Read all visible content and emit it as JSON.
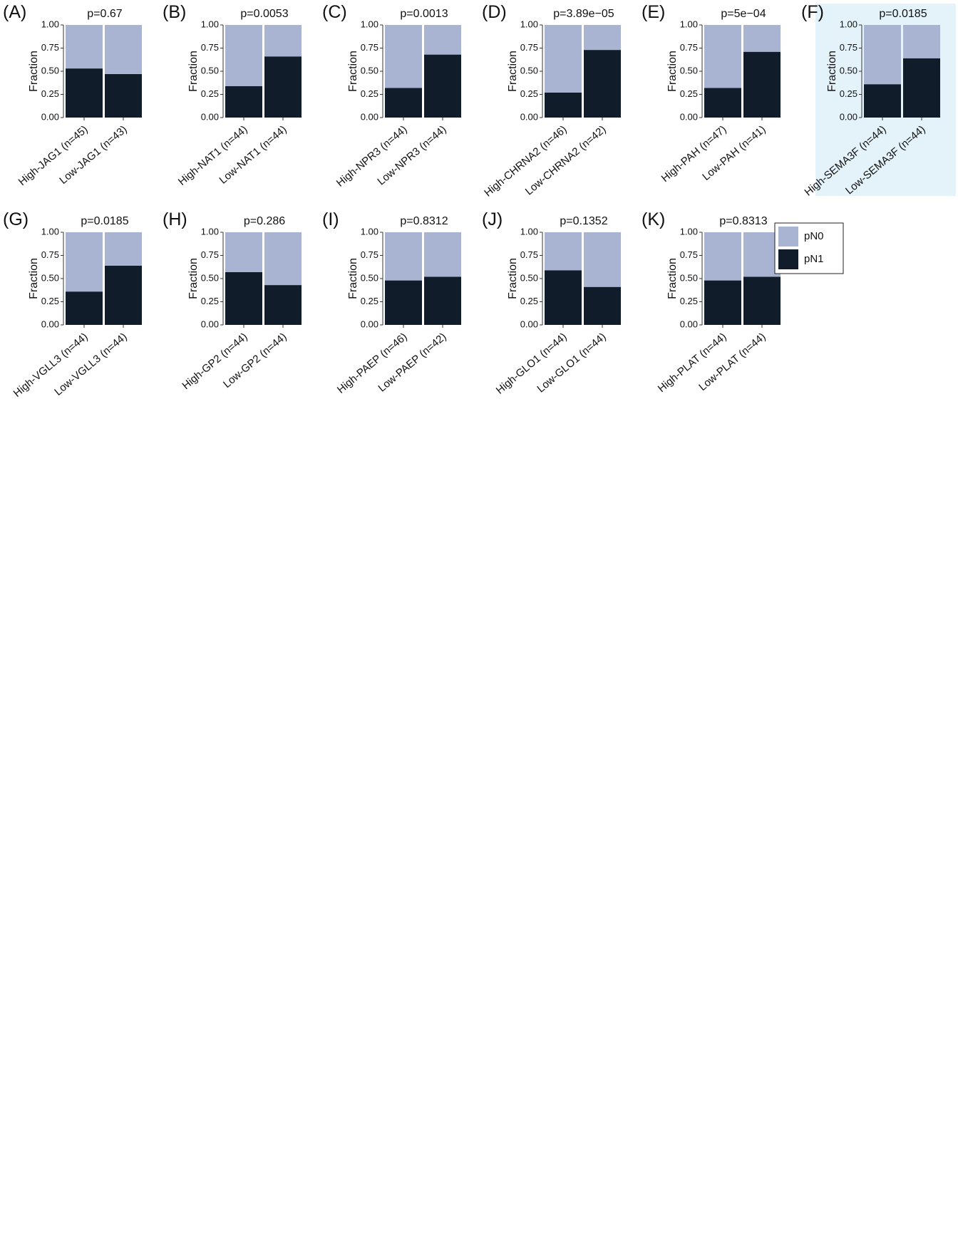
{
  "colors": {
    "pN0": "#a8b4d2",
    "pN1": "#111c2b",
    "highlight_bg": "#e4f2fa"
  },
  "legend": {
    "items": [
      "pN0",
      "pN1"
    ]
  },
  "chart_data": [
    {
      "type": "bar",
      "stacked": true,
      "panel": "(A)",
      "title": "p=0.67",
      "ylabel": "Fraction",
      "ylim": [
        0,
        1
      ],
      "yticks": [
        "0.00",
        "0.25",
        "0.50",
        "0.75",
        "1.00"
      ],
      "categories": [
        "High-JAG1 (n=45)",
        "Low-JAG1 (n=43)"
      ],
      "series": [
        {
          "name": "pN1",
          "values": [
            0.53,
            0.47
          ]
        },
        {
          "name": "pN0",
          "values": [
            0.47,
            0.53
          ]
        }
      ]
    },
    {
      "type": "bar",
      "stacked": true,
      "panel": "(B)",
      "title": "p=0.0053",
      "ylabel": "Fraction",
      "ylim": [
        0,
        1
      ],
      "yticks": [
        "0.00",
        "0.25",
        "0.50",
        "0.75",
        "1.00"
      ],
      "categories": [
        "High-NAT1 (n=44)",
        "Low-NAT1 (n=44)"
      ],
      "series": [
        {
          "name": "pN1",
          "values": [
            0.34,
            0.66
          ]
        },
        {
          "name": "pN0",
          "values": [
            0.66,
            0.34
          ]
        }
      ]
    },
    {
      "type": "bar",
      "stacked": true,
      "panel": "(C)",
      "title": "p=0.0013",
      "ylabel": "Fraction",
      "ylim": [
        0,
        1
      ],
      "yticks": [
        "0.00",
        "0.25",
        "0.50",
        "0.75",
        "1.00"
      ],
      "categories": [
        "High-NPR3 (n=44)",
        "Low-NPR3 (n=44)"
      ],
      "series": [
        {
          "name": "pN1",
          "values": [
            0.32,
            0.68
          ]
        },
        {
          "name": "pN0",
          "values": [
            0.68,
            0.32
          ]
        }
      ]
    },
    {
      "type": "bar",
      "stacked": true,
      "panel": "(D)",
      "title": "p=3.89e−05",
      "ylabel": "Fraction",
      "ylim": [
        0,
        1
      ],
      "yticks": [
        "0.00",
        "0.25",
        "0.50",
        "0.75",
        "1.00"
      ],
      "categories": [
        "High-CHRNA2 (n=46)",
        "Low-CHRNA2 (n=42)"
      ],
      "series": [
        {
          "name": "pN1",
          "values": [
            0.27,
            0.73
          ]
        },
        {
          "name": "pN0",
          "values": [
            0.73,
            0.27
          ]
        }
      ]
    },
    {
      "type": "bar",
      "stacked": true,
      "panel": "(E)",
      "title": "p=5e−04",
      "ylabel": "Fraction",
      "ylim": [
        0,
        1
      ],
      "yticks": [
        "0.00",
        "0.25",
        "0.50",
        "0.75",
        "1.00"
      ],
      "categories": [
        "High-PAH (n=47)",
        "Low-PAH (n=41)"
      ],
      "series": [
        {
          "name": "pN1",
          "values": [
            0.32,
            0.71
          ]
        },
        {
          "name": "pN0",
          "values": [
            0.68,
            0.29
          ]
        }
      ]
    },
    {
      "type": "bar",
      "stacked": true,
      "panel": "(F)",
      "title": "p=0.0185",
      "ylabel": "Fraction",
      "ylim": [
        0,
        1
      ],
      "yticks": [
        "0.00",
        "0.25",
        "0.50",
        "0.75",
        "1.00"
      ],
      "highlighted": true,
      "categories": [
        "High-SEMA3F (n=44)",
        "Low-SEMA3F (n=44)"
      ],
      "series": [
        {
          "name": "pN1",
          "values": [
            0.36,
            0.64
          ]
        },
        {
          "name": "pN0",
          "values": [
            0.64,
            0.36
          ]
        }
      ]
    },
    {
      "type": "bar",
      "stacked": true,
      "panel": "(G)",
      "title": "p=0.0185",
      "ylabel": "Fraction",
      "ylim": [
        0,
        1
      ],
      "yticks": [
        "0.00",
        "0.25",
        "0.50",
        "0.75",
        "1.00"
      ],
      "categories": [
        "High-VGLL3 (n=44)",
        "Low-VGLL3 (n=44)"
      ],
      "series": [
        {
          "name": "pN1",
          "values": [
            0.36,
            0.64
          ]
        },
        {
          "name": "pN0",
          "values": [
            0.64,
            0.36
          ]
        }
      ]
    },
    {
      "type": "bar",
      "stacked": true,
      "panel": "(H)",
      "title": "p=0.286",
      "ylabel": "Fraction",
      "ylim": [
        0,
        1
      ],
      "yticks": [
        "0.00",
        "0.25",
        "0.50",
        "0.75",
        "1.00"
      ],
      "categories": [
        "High-GP2 (n=44)",
        "Low-GP2 (n=44)"
      ],
      "series": [
        {
          "name": "pN1",
          "values": [
            0.57,
            0.43
          ]
        },
        {
          "name": "pN0",
          "values": [
            0.43,
            0.57
          ]
        }
      ]
    },
    {
      "type": "bar",
      "stacked": true,
      "panel": "(I)",
      "title": "p=0.8312",
      "ylabel": "Fraction",
      "ylim": [
        0,
        1
      ],
      "yticks": [
        "0.00",
        "0.25",
        "0.50",
        "0.75",
        "1.00"
      ],
      "categories": [
        "High-PAEP (n=46)",
        "Low-PAEP (n=42)"
      ],
      "series": [
        {
          "name": "pN1",
          "values": [
            0.48,
            0.52
          ]
        },
        {
          "name": "pN0",
          "values": [
            0.52,
            0.48
          ]
        }
      ]
    },
    {
      "type": "bar",
      "stacked": true,
      "panel": "(J)",
      "title": "p=0.1352",
      "ylabel": "Fraction",
      "ylim": [
        0,
        1
      ],
      "yticks": [
        "0.00",
        "0.25",
        "0.50",
        "0.75",
        "1.00"
      ],
      "categories": [
        "High-GLO1 (n=44)",
        "Low-GLO1 (n=44)"
      ],
      "series": [
        {
          "name": "pN1",
          "values": [
            0.59,
            0.41
          ]
        },
        {
          "name": "pN0",
          "values": [
            0.41,
            0.59
          ]
        }
      ]
    },
    {
      "type": "bar",
      "stacked": true,
      "panel": "(K)",
      "title": "p=0.8313",
      "ylabel": "Fraction",
      "ylim": [
        0,
        1
      ],
      "yticks": [
        "0.00",
        "0.25",
        "0.50",
        "0.75",
        "1.00"
      ],
      "categories": [
        "High-PLAT (n=44)",
        "Low-PLAT (n=44)"
      ],
      "series": [
        {
          "name": "pN1",
          "values": [
            0.48,
            0.52
          ]
        },
        {
          "name": "pN0",
          "values": [
            0.52,
            0.48
          ]
        }
      ]
    }
  ]
}
